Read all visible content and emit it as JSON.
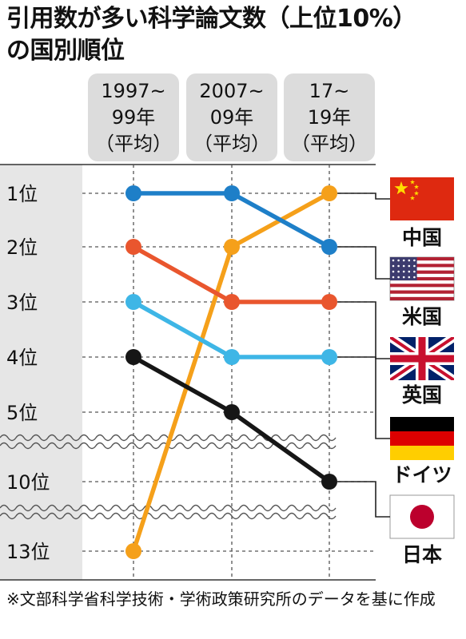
{
  "title": {
    "line1": "引用数が多い科学論文数（上位10%）",
    "line2": "の国別順位"
  },
  "footnote": "※文部科学省科学技術・学術政策研究所のデータを基に作成",
  "chart_data": {
    "type": "line",
    "title": "引用数が多い科学論文数（上位10%）の国別順位",
    "periods": [
      {
        "id": "1997-99",
        "lines": [
          "1997~",
          "99年",
          "（平均）"
        ]
      },
      {
        "id": "2007-09",
        "lines": [
          "2007~",
          "09年",
          "（平均）"
        ]
      },
      {
        "id": "2017-19",
        "lines": [
          "17~",
          "19年",
          "（平均）"
        ]
      }
    ],
    "rank_ticks": [
      "1位",
      "2位",
      "3位",
      "4位",
      "5位",
      "10位",
      "13位"
    ],
    "rank_values": [
      1,
      2,
      3,
      4,
      5,
      10,
      13
    ],
    "y_axis": "rank, inverted (1位 at top), broken axis between 5位 and 10位 and between 10位 and 13位",
    "series": [
      {
        "name": "中国",
        "flag": "china-flag",
        "color": "#F5A01A",
        "ranks": [
          13,
          2,
          1
        ]
      },
      {
        "name": "米国",
        "flag": "usa-flag",
        "color": "#1E7FC8",
        "ranks": [
          1,
          1,
          2
        ]
      },
      {
        "name": "英国",
        "flag": "uk-flag",
        "color": "#E9562E",
        "ranks": [
          2,
          3,
          3
        ]
      },
      {
        "name": "ドイツ",
        "flag": "germany-flag",
        "color": "#3EB6E6",
        "ranks": [
          3,
          4,
          4
        ]
      },
      {
        "name": "日本",
        "flag": "japan-flag",
        "color": "#161616",
        "ranks": [
          4,
          5,
          10
        ]
      }
    ]
  }
}
